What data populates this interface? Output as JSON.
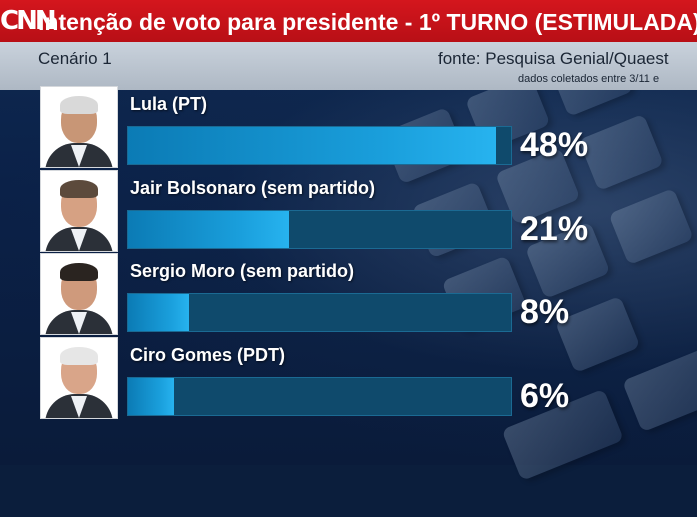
{
  "header": {
    "logo": "CNN",
    "title": "Intenção de voto para presidente - 1º TURNO (ESTIMULADA)"
  },
  "subheader": {
    "scenario": "Cenário 1",
    "source": "fonte: Pesquisa Genial/Quaest",
    "collected": "dados coletados entre 3/11 e"
  },
  "colors": {
    "header_red": "#c8141b",
    "bar_fill": "#1a9fdc",
    "bar_track": "#0f4a6c",
    "background": "#0b1e3c"
  },
  "chart_data": {
    "type": "bar",
    "orientation": "horizontal",
    "title": "Intenção de voto para presidente - 1º TURNO (ESTIMULADA)",
    "categories": [
      "Lula (PT)",
      "Jair Bolsonaro (sem partido)",
      "Sergio Moro (sem partido)",
      "Ciro Gomes (PDT)"
    ],
    "values": [
      48,
      21,
      8,
      6
    ],
    "labels": [
      "48%",
      "21%",
      "8%",
      "6%"
    ],
    "xlim": [
      0,
      50
    ],
    "grid": false,
    "legend": "none"
  }
}
